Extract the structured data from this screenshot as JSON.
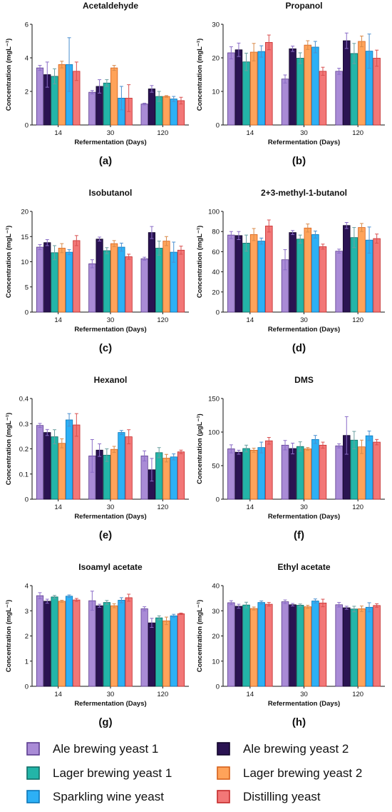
{
  "colors": {
    "series": [
      "#a98bd6",
      "#2a1352",
      "#23b5a8",
      "#ffa35a",
      "#2db0f5",
      "#f27777"
    ],
    "series_border": [
      "#5c3d8f",
      "#12062a",
      "#0f6d66",
      "#d6601a",
      "#0b76b8",
      "#c42a2a"
    ],
    "errorbar": [
      "#8a6cc7",
      "#8a6cc7",
      "#6a9fa0",
      "#d98a4a",
      "#4a8fd0",
      "#d95050"
    ]
  },
  "legend": [
    "Ale brewing yeast 1",
    "Ale brewing yeast 2",
    "Lager brewing yeast 1",
    "Lager brewing yeast 2",
    "Sparkling wine yeast",
    "Distilling yeast"
  ],
  "chart_data": [
    {
      "type": "bar",
      "panel": "(a)",
      "title": "Acetaldehyde",
      "xlabel": "Refermentation (Days)",
      "ylabel": "Concentration (mgL⁻¹)",
      "categories": [
        "14",
        "30",
        "120"
      ],
      "ylim": [
        0,
        6
      ],
      "yticks": [
        "0",
        "2",
        "4",
        "6"
      ],
      "series": [
        {
          "name": "Ale brewing yeast 1",
          "values": [
            3.4,
            1.95,
            1.25
          ],
          "errors": [
            0.15,
            0.1,
            0.05
          ]
        },
        {
          "name": "Ale brewing yeast 2",
          "values": [
            3.0,
            2.3,
            2.15
          ],
          "errors": [
            0.75,
            0.4,
            0.2
          ]
        },
        {
          "name": "Lager brewing yeast 1",
          "values": [
            2.9,
            2.5,
            1.7
          ],
          "errors": [
            0.45,
            0.2,
            0.3
          ]
        },
        {
          "name": "Lager brewing yeast 2",
          "values": [
            3.6,
            3.4,
            1.7
          ],
          "errors": [
            0.2,
            0.15,
            0.05
          ]
        },
        {
          "name": "Sparkling wine yeast",
          "values": [
            3.6,
            1.6,
            1.55
          ],
          "errors": [
            1.6,
            0.7,
            0.15
          ]
        },
        {
          "name": "Distilling yeast",
          "values": [
            3.2,
            1.6,
            1.45
          ],
          "errors": [
            0.55,
            0.8,
            0.2
          ]
        }
      ]
    },
    {
      "type": "bar",
      "panel": "(b)",
      "title": "Propanol",
      "xlabel": "Refermentation (Days)",
      "ylabel": "Concentration (mgL⁻¹)",
      "categories": [
        "14",
        "30",
        "120"
      ],
      "ylim": [
        0,
        30
      ],
      "yticks": [
        "0",
        "10",
        "20",
        "30"
      ],
      "series": [
        {
          "name": "Ale brewing yeast 1",
          "values": [
            21.5,
            13.7,
            16.0
          ],
          "errors": [
            1.8,
            1.2,
            0.9
          ]
        },
        {
          "name": "Ale brewing yeast 2",
          "values": [
            22.4,
            22.7,
            25.1
          ],
          "errors": [
            2.0,
            0.8,
            2.3
          ]
        },
        {
          "name": "Lager brewing yeast 1",
          "values": [
            18.8,
            19.9,
            21.3
          ],
          "errors": [
            2.6,
            1.6,
            3.0
          ]
        },
        {
          "name": "Lager brewing yeast 2",
          "values": [
            21.7,
            23.8,
            24.9
          ],
          "errors": [
            2.6,
            1.3,
            1.6
          ]
        },
        {
          "name": "Sparkling wine yeast",
          "values": [
            21.9,
            23.2,
            22.0
          ],
          "errors": [
            1.7,
            1.7,
            5.1
          ]
        },
        {
          "name": "Distilling yeast",
          "values": [
            24.6,
            16.0,
            19.9
          ],
          "errors": [
            2.2,
            1.2,
            2.4
          ]
        }
      ]
    },
    {
      "type": "bar",
      "panel": "(c)",
      "title": "Isobutanol",
      "xlabel": "Refermentation (Days)",
      "ylabel": "Concentration (mgL⁻¹)",
      "categories": [
        "14",
        "30",
        "120"
      ],
      "ylim": [
        0,
        20
      ],
      "yticks": [
        "0",
        "5",
        "10",
        "15",
        "20"
      ],
      "series": [
        {
          "name": "Ale brewing yeast 1",
          "values": [
            12.9,
            9.6,
            10.6
          ],
          "errors": [
            0.5,
            0.8,
            0.3
          ]
        },
        {
          "name": "Ale brewing yeast 2",
          "values": [
            13.8,
            14.5,
            15.8
          ],
          "errors": [
            0.6,
            0.4,
            1.2
          ]
        },
        {
          "name": "Lager brewing yeast 1",
          "values": [
            11.8,
            12.2,
            12.7
          ],
          "errors": [
            1.4,
            0.6,
            1.4
          ]
        },
        {
          "name": "Lager brewing yeast 2",
          "values": [
            12.7,
            13.6,
            14.1
          ],
          "errors": [
            0.9,
            0.6,
            0.9
          ]
        },
        {
          "name": "Sparkling wine yeast",
          "values": [
            11.9,
            12.9,
            11.9
          ],
          "errors": [
            0.5,
            0.8,
            2.0
          ]
        },
        {
          "name": "Distilling yeast",
          "values": [
            14.2,
            11.0,
            12.3
          ],
          "errors": [
            1.0,
            0.5,
            0.8
          ]
        }
      ]
    },
    {
      "type": "bar",
      "panel": "(d)",
      "title": "2+3-methyl-1-butanol",
      "xlabel": "Refermentation (Days)",
      "ylabel": "Concentration (mgL⁻¹)",
      "categories": [
        "14",
        "30",
        "120"
      ],
      "ylim": [
        0,
        100
      ],
      "yticks": [
        "0",
        "20",
        "40",
        "60",
        "80",
        "100"
      ],
      "series": [
        {
          "name": "Ale brewing yeast 1",
          "values": [
            76.5,
            52.0,
            60.5
          ],
          "errors": [
            3.5,
            10.0,
            2.0
          ]
        },
        {
          "name": "Ale brewing yeast 2",
          "values": [
            76.0,
            79.0,
            86.0
          ],
          "errors": [
            4.0,
            2.0,
            3.0
          ]
        },
        {
          "name": "Lager brewing yeast 1",
          "values": [
            68.5,
            72.5,
            74.0
          ],
          "errors": [
            8.0,
            4.0,
            10.0
          ]
        },
        {
          "name": "Lager brewing yeast 2",
          "values": [
            77.0,
            83.5,
            84.0
          ],
          "errors": [
            6.0,
            4.0,
            4.0
          ]
        },
        {
          "name": "Sparkling wine yeast",
          "values": [
            70.5,
            77.0,
            71.5
          ],
          "errors": [
            3.0,
            3.5,
            13.0
          ]
        },
        {
          "name": "Distilling yeast",
          "values": [
            85.5,
            65.0,
            73.0
          ],
          "errors": [
            6.0,
            2.5,
            4.5
          ]
        }
      ]
    },
    {
      "type": "bar",
      "panel": "(e)",
      "title": "Hexanol",
      "xlabel": "Refermentation (Days)",
      "ylabel": "Concentration (mgL⁻¹)",
      "categories": [
        "14",
        "30",
        "120"
      ],
      "ylim": [
        0,
        0.4
      ],
      "yticks": [
        "0",
        "0.1",
        "0.2",
        "0.3",
        "0.4"
      ],
      "series": [
        {
          "name": "Ale brewing yeast 1",
          "values": [
            0.293,
            0.172,
            0.172
          ],
          "errors": [
            0.008,
            0.065,
            0.02
          ]
        },
        {
          "name": "Ale brewing yeast 2",
          "values": [
            0.265,
            0.195,
            0.117
          ],
          "errors": [
            0.012,
            0.025,
            0.045
          ]
        },
        {
          "name": "Lager brewing yeast 1",
          "values": [
            0.248,
            0.175,
            0.185
          ],
          "errors": [
            0.028,
            0.025,
            0.02
          ]
        },
        {
          "name": "Lager brewing yeast 2",
          "values": [
            0.222,
            0.198,
            0.163
          ],
          "errors": [
            0.018,
            0.012,
            0.015
          ]
        },
        {
          "name": "Sparkling wine yeast",
          "values": [
            0.315,
            0.265,
            0.168
          ],
          "errors": [
            0.025,
            0.008,
            0.012
          ]
        },
        {
          "name": "Distilling yeast",
          "values": [
            0.295,
            0.248,
            0.188
          ],
          "errors": [
            0.045,
            0.028,
            0.007
          ]
        }
      ]
    },
    {
      "type": "bar",
      "panel": "(f)",
      "title": "DMS",
      "xlabel": "Refermentation (Days)",
      "ylabel": "Concentration (µgL⁻¹)",
      "categories": [
        "14",
        "30",
        "120"
      ],
      "ylim": [
        0,
        150
      ],
      "yticks": [
        "0",
        "50",
        "100",
        "150"
      ],
      "series": [
        {
          "name": "Ale brewing yeast 1",
          "values": [
            75.0,
            80.5,
            79.5
          ],
          "errors": [
            6.0,
            7.0,
            3.0
          ]
        },
        {
          "name": "Ale brewing yeast 2",
          "values": [
            70.0,
            75.5,
            95.0
          ],
          "errors": [
            3.0,
            8.0,
            28.0
          ]
        },
        {
          "name": "Lager brewing yeast 1",
          "values": [
            75.5,
            78.5,
            88.0
          ],
          "errors": [
            5.0,
            7.0,
            13.0
          ]
        },
        {
          "name": "Lager brewing yeast 2",
          "values": [
            73.0,
            75.0,
            78.0
          ],
          "errors": [
            3.0,
            2.0,
            10.0
          ]
        },
        {
          "name": "Sparkling wine yeast",
          "values": [
            77.0,
            89.0,
            94.5
          ],
          "errors": [
            8.0,
            6.0,
            7.0
          ]
        },
        {
          "name": "Distilling yeast",
          "values": [
            87.0,
            80.5,
            85.0
          ],
          "errors": [
            5.0,
            4.5,
            4.0
          ]
        }
      ]
    },
    {
      "type": "bar",
      "panel": "(g)",
      "title": "Isoamyl acetate",
      "xlabel": "Refermentation (Days)",
      "ylabel": "Concentration (mgL⁻¹)",
      "categories": [
        "14",
        "30",
        "120"
      ],
      "ylim": [
        0,
        4
      ],
      "yticks": [
        "0",
        "1",
        "2",
        "3",
        "4"
      ],
      "series": [
        {
          "name": "Ale brewing yeast 1",
          "values": [
            3.6,
            3.4,
            3.08
          ],
          "errors": [
            0.12,
            0.38,
            0.08
          ]
        },
        {
          "name": "Ale brewing yeast 2",
          "values": [
            3.38,
            3.2,
            2.52
          ],
          "errors": [
            0.08,
            0.06,
            0.18
          ]
        },
        {
          "name": "Lager brewing yeast 1",
          "values": [
            3.55,
            3.33,
            2.72
          ],
          "errors": [
            0.06,
            0.08,
            0.08
          ]
        },
        {
          "name": "Lager brewing yeast 2",
          "values": [
            3.38,
            3.2,
            2.6
          ],
          "errors": [
            0.04,
            0.08,
            0.15
          ]
        },
        {
          "name": "Sparkling wine yeast",
          "values": [
            3.58,
            3.42,
            2.8
          ],
          "errors": [
            0.05,
            0.1,
            0.06
          ]
        },
        {
          "name": "Distilling yeast",
          "values": [
            3.43,
            3.52,
            2.88
          ],
          "errors": [
            0.06,
            0.14,
            0.03
          ]
        }
      ]
    },
    {
      "type": "bar",
      "panel": "(h)",
      "title": "Ethyl acetate",
      "xlabel": "Refermentation (Days)",
      "ylabel": "Concentration (mgL⁻¹)",
      "categories": [
        "14",
        "30",
        "120"
      ],
      "ylim": [
        0,
        40
      ],
      "yticks": [
        "0",
        "10",
        "20",
        "30",
        "40"
      ],
      "series": [
        {
          "name": "Ale brewing yeast 1",
          "values": [
            33.2,
            33.6,
            32.4
          ],
          "errors": [
            0.8,
            0.7,
            0.9
          ]
        },
        {
          "name": "Ale brewing yeast 2",
          "values": [
            31.8,
            32.4,
            31.2
          ],
          "errors": [
            0.8,
            0.5,
            0.6
          ]
        },
        {
          "name": "Lager brewing yeast 1",
          "values": [
            32.3,
            32.2,
            30.7
          ],
          "errors": [
            1.1,
            0.5,
            1.1
          ]
        },
        {
          "name": "Lager brewing yeast 2",
          "values": [
            30.9,
            31.6,
            30.8
          ],
          "errors": [
            0.6,
            0.6,
            1.1
          ]
        },
        {
          "name": "Sparkling wine yeast",
          "values": [
            33.3,
            33.9,
            31.4
          ],
          "errors": [
            0.6,
            0.8,
            1.8
          ]
        },
        {
          "name": "Distilling yeast",
          "values": [
            32.6,
            33.1,
            32.1
          ],
          "errors": [
            0.7,
            1.5,
            0.7
          ]
        }
      ]
    }
  ]
}
